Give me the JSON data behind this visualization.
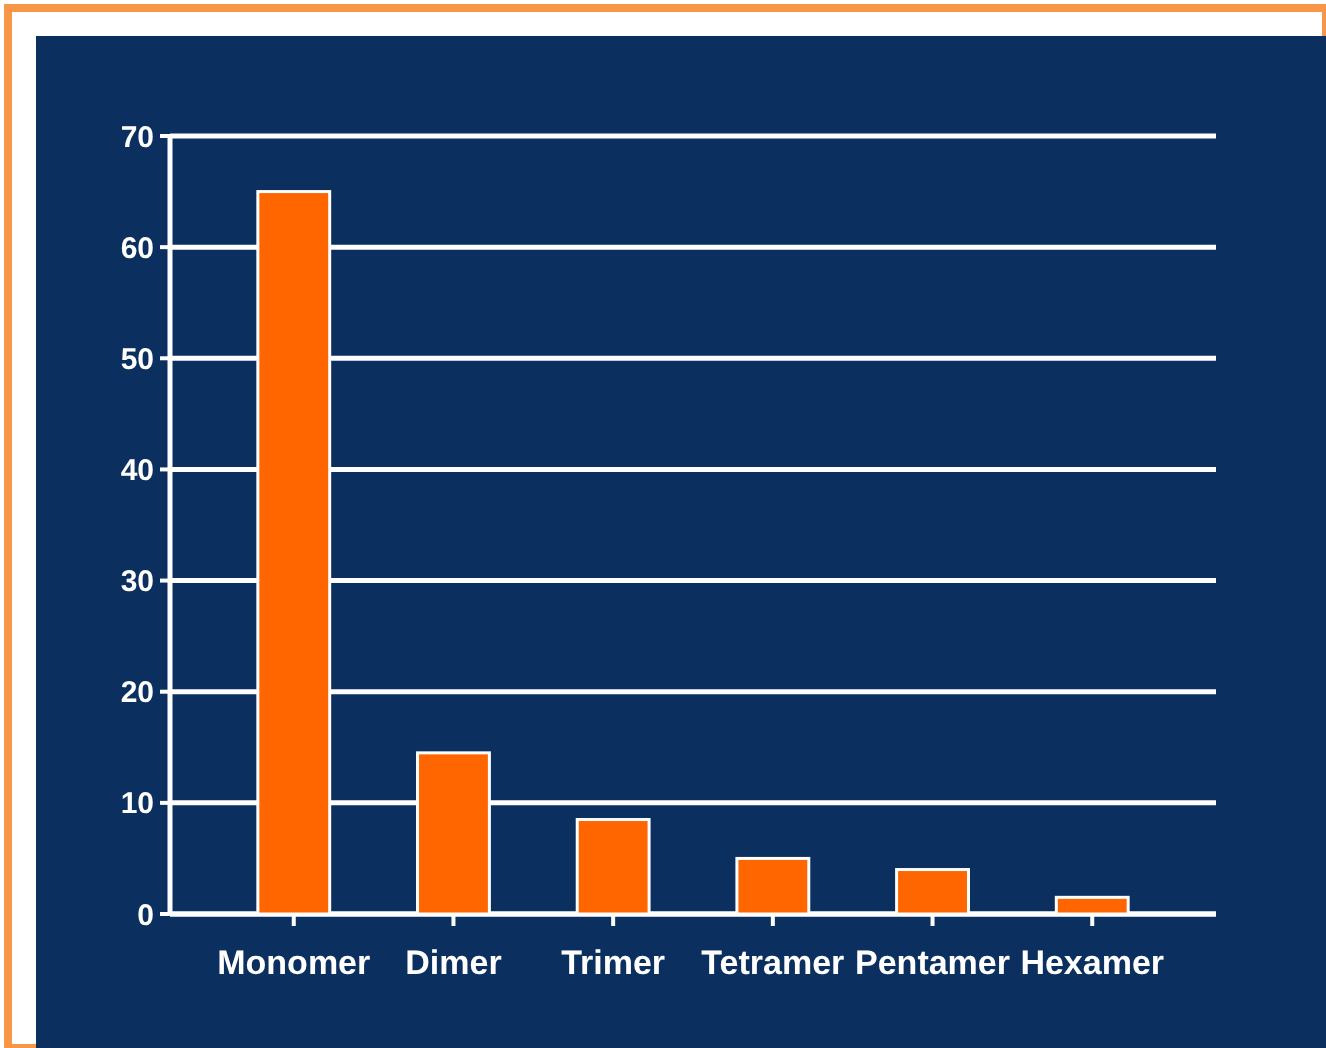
{
  "chart_data": {
    "type": "bar",
    "categories": [
      "Monomer",
      "Dimer",
      "Trimer",
      "Tetramer",
      "Pentamer",
      "Hexamer"
    ],
    "values": [
      65,
      14.5,
      8.5,
      5,
      4,
      1.5
    ],
    "color": "#ff6600",
    "ylim": [
      0,
      70
    ],
    "yticks": [
      0,
      10,
      20,
      30,
      40,
      50,
      60,
      70
    ],
    "grid": "y"
  }
}
